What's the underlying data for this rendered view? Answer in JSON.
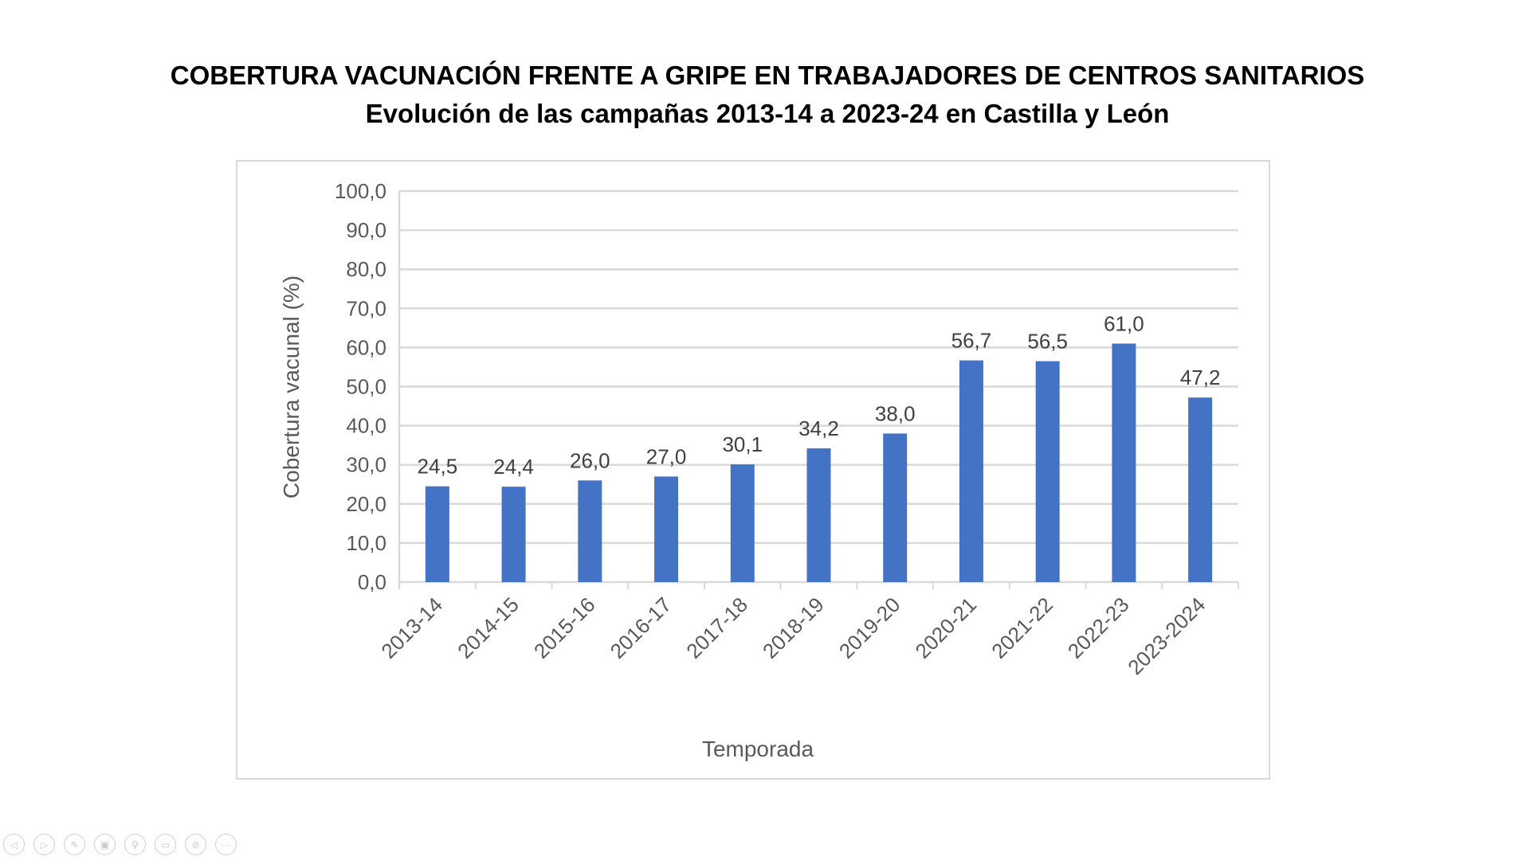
{
  "title_line1": "COBERTURA VACUNACIÓN FRENTE A GRIPE EN TRABAJADORES DE CENTROS SANITARIOS",
  "title_line2": "Evolución de las campañas 2013-14 a 2023-24 en Castilla y León",
  "chart_data": {
    "type": "bar",
    "title": "COBERTURA VACUNACIÓN FRENTE A GRIPE EN TRABAJADORES DE CENTROS SANITARIOS",
    "subtitle": "Evolución de las campañas 2013-14 a 2023-24 en Castilla y León",
    "categories": [
      "2013-14",
      "2014-15",
      "2015-16",
      "2016-17",
      "2017-18",
      "2018-19",
      "2019-20",
      "2020-21",
      "2021-22",
      "2022-23",
      "2023-2024"
    ],
    "values": [
      24.5,
      24.4,
      26.0,
      27.0,
      30.1,
      34.2,
      38.0,
      56.7,
      56.5,
      61.0,
      47.2
    ],
    "data_labels": [
      "24,5",
      "24,4",
      "26,0",
      "27,0",
      "30,1",
      "34,2",
      "38,0",
      "56,7",
      "56,5",
      "61,0",
      "47,2"
    ],
    "y_ticks": [
      "0,0",
      "10,0",
      "20,0",
      "30,0",
      "40,0",
      "50,0",
      "60,0",
      "70,0",
      "80,0",
      "90,0",
      "100,0"
    ],
    "xlabel": "Temporada",
    "ylabel": "Cobertura vacunal (%)",
    "ylim": [
      0,
      100
    ],
    "grid": true,
    "bar_color": "#4472c4"
  },
  "toolbar_icons": [
    "previous-icon",
    "next-icon",
    "pen-icon",
    "slides-icon",
    "zoom-icon",
    "subtitles-icon",
    "camera-off-icon",
    "more-icon"
  ]
}
